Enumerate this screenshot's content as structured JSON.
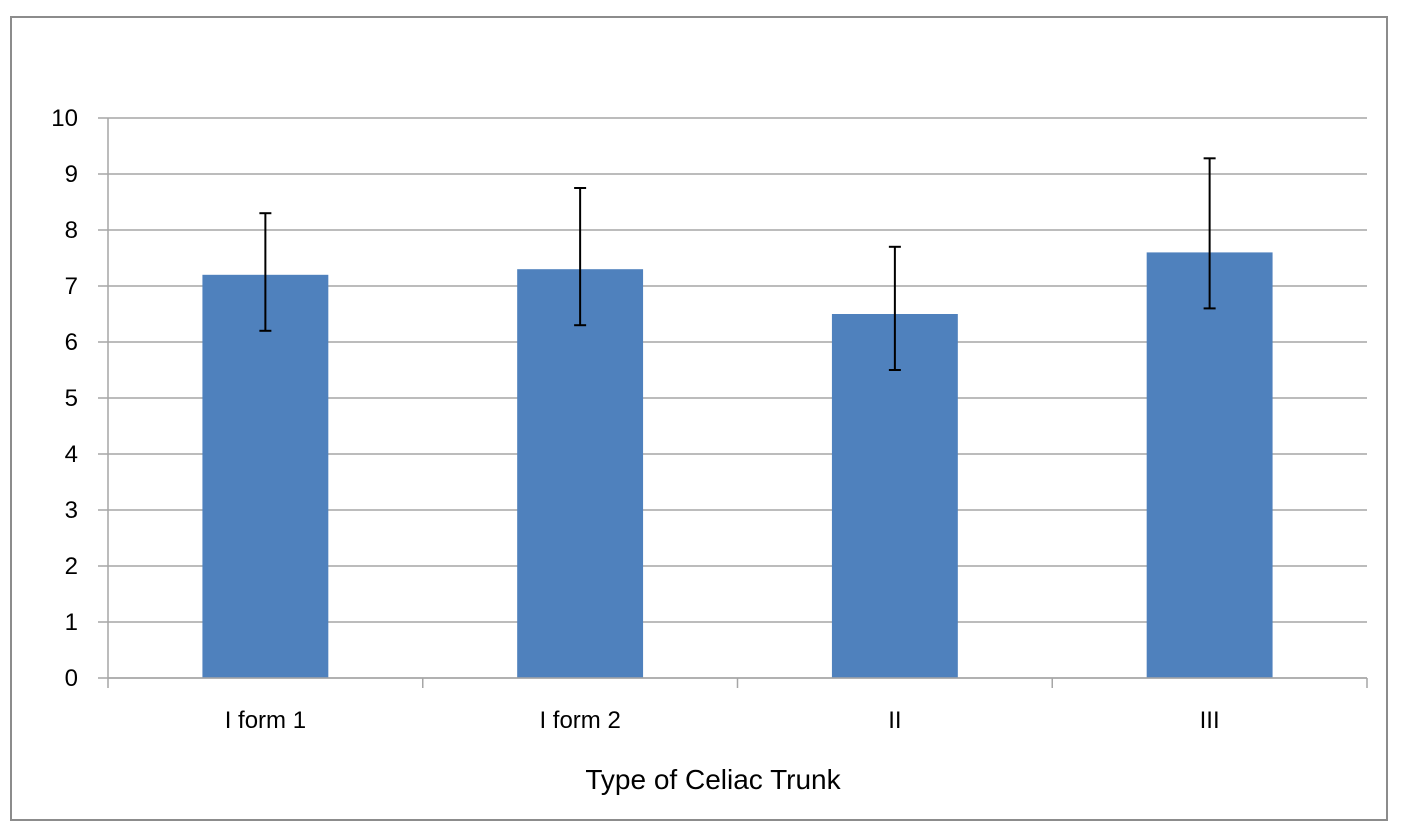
{
  "chart_data": {
    "type": "bar",
    "title": "",
    "xlabel": "Type of Celiac Trunk",
    "ylabel": "",
    "categories": [
      "I form 1",
      "I form 2",
      "II",
      "III"
    ],
    "values": [
      7.2,
      7.3,
      6.5,
      7.6
    ],
    "error_low": [
      6.2,
      6.3,
      5.5,
      6.6
    ],
    "error_high": [
      8.3,
      8.75,
      7.7,
      9.28
    ],
    "ylim": [
      0,
      10
    ],
    "yticks": [
      0,
      1,
      2,
      3,
      4,
      5,
      6,
      7,
      8,
      9,
      10
    ],
    "grid": true,
    "legend": "none",
    "colors": {
      "bar": "#4f81bd",
      "grid": "#a6a6a6",
      "axis": "#a6a6a6",
      "error_bar": "#000000",
      "frame": "#8c8c8c"
    }
  }
}
